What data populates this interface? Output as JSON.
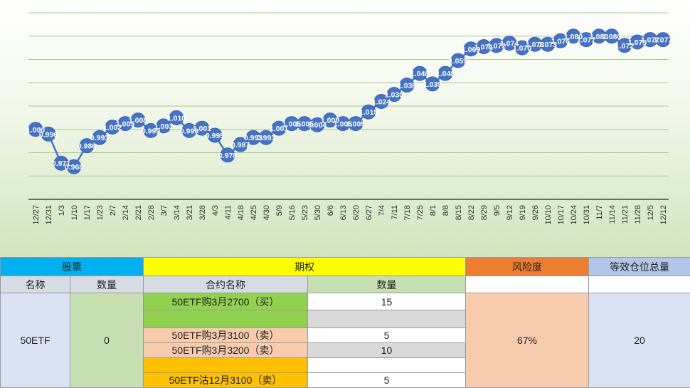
{
  "chart_data": {
    "type": "line",
    "categories": [
      "12/27",
      "12/31",
      "1/3",
      "1/10",
      "1/17",
      "1/23",
      "2/7",
      "2/14",
      "2/21",
      "2/28",
      "3/7",
      "3/14",
      "3/21",
      "3/28",
      "4/3",
      "4/11",
      "4/18",
      "4/25",
      "4/30",
      "5/9",
      "5/16",
      "5/23",
      "5/30",
      "6/6",
      "6/13",
      "6/20",
      "6/27",
      "7/4",
      "7/11",
      "7/18",
      "7/25",
      "8/1",
      "8/8",
      "8/15",
      "8/22",
      "8/29",
      "9/5",
      "9/12",
      "9/19",
      "9/26",
      "10/10",
      "10/17",
      "10/24",
      "10/31",
      "11/7",
      "11/14",
      "11/21",
      "11/28",
      "12/5",
      "12/12"
    ],
    "values": [
      1.0,
      0.996,
      0.971,
      0.968,
      0.986,
      0.993,
      1.002,
      1.005,
      1.008,
      0.999,
      1.003,
      1.01,
      0.999,
      1.001,
      0.995,
      0.978,
      0.987,
      0.993,
      0.993,
      1.001,
      1.005,
      1.005,
      1.004,
      1.008,
      1.005,
      1.005,
      1.015,
      1.024,
      1.03,
      1.038,
      1.048,
      1.039,
      1.048,
      1.059,
      1.069,
      1.071,
      1.072,
      1.074,
      1.07,
      1.073,
      1.073,
      1.076,
      1.08,
      1.077,
      1.08,
      1.08,
      1.072,
      1.075,
      1.077,
      1.077
    ],
    "labels": [
      "1.000",
      "0.996",
      "0.971",
      "0.968",
      "0.986",
      "0.993",
      "1.002",
      "1.005",
      "1.008",
      "0.999",
      "1.003",
      "1.010",
      "0.999",
      "1.001",
      "0.995",
      "0.978",
      "0.987",
      "0.993",
      "0.993",
      "1.001",
      "1.005",
      "1.005",
      "1.004",
      "1.008",
      "1.005",
      "1.005",
      "1.015",
      "1.024",
      "1.030",
      "1.038",
      "1.048",
      "1.039",
      "1.048",
      "1.059",
      "1.069",
      "1.071",
      "1.072",
      "1.074",
      "1.070",
      "1.073",
      "1.073",
      "1.076",
      "1.080",
      "1.077",
      "1.080",
      "1.080",
      "1.072",
      "1.075",
      "1.077",
      "1.077"
    ],
    "ylim": [
      0.94,
      1.1
    ],
    "grid": true,
    "colors": {
      "line": "#4472c4",
      "marker": "#4472c4",
      "label": "#ffffff",
      "grid": "#a9c58f",
      "axis": "#444444"
    }
  },
  "table": {
    "header": {
      "stock": "股票",
      "option": "期权",
      "risk": "风险度",
      "equiv": "等效仓位总量"
    },
    "sub": {
      "name": "名称",
      "qty": "数量",
      "contract": "合约名称",
      "option_qty": "数量"
    },
    "stock_name": "50ETF",
    "stock_qty": "0",
    "risk_value": "67%",
    "equiv_value": "20",
    "options": [
      {
        "name": "50ETF购3月2700（买）",
        "qty": "15"
      },
      {
        "name": "",
        "qty": ""
      },
      {
        "name": "50ETF购3月3100（卖）",
        "qty": "5"
      },
      {
        "name": "50ETF购3月3200（卖）",
        "qty": "10"
      },
      {
        "name": "",
        "qty": ""
      },
      {
        "name": "50ETF沽12月3100（卖）",
        "qty": "5"
      }
    ]
  }
}
